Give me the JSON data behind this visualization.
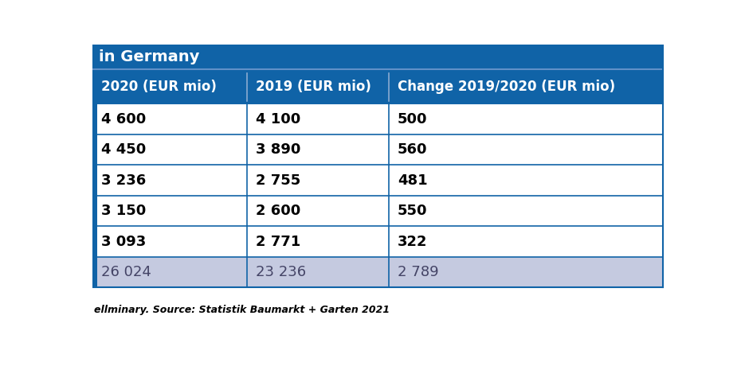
{
  "title": "in Germany",
  "title_bg_color": "#1063a7",
  "title_text_color": "#ffffff",
  "header_bg_color": "#1063a7",
  "header_text_color": "#ffffff",
  "columns": [
    "2020 (EUR mio)",
    "2019 (EUR mio)",
    "Change 2019/2020 (EUR mio)"
  ],
  "rows": [
    [
      "4 600",
      "4 100",
      "500"
    ],
    [
      "4 450",
      "3 890",
      "560"
    ],
    [
      "3 236",
      "2 755",
      "481"
    ],
    [
      "3 150",
      "2 600",
      "550"
    ],
    [
      "3 093",
      "2 771",
      "322"
    ]
  ],
  "last_row": [
    "26 024",
    "23 236",
    "2 789"
  ],
  "row_bg_color": "#ffffff",
  "last_row_bg_color": "#c5cae0",
  "border_color": "#1063a7",
  "accent_bar_color": "#1063a7",
  "accent_bar_width": 7,
  "footnote": "ellminary. Source: Statistik Baumarkt + Garten 2021",
  "footnote_color": "#000000",
  "title_fontsize": 14,
  "header_fontsize": 12,
  "data_fontsize": 13,
  "footnote_fontsize": 9
}
